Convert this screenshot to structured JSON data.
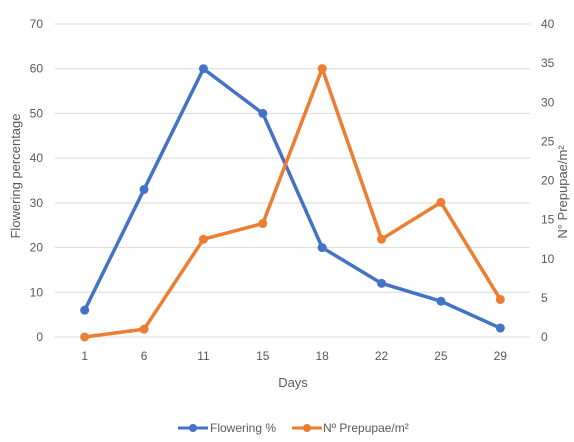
{
  "chart_data": {
    "type": "line",
    "title": "",
    "xlabel": "Days",
    "ylabel": "Flowering percentage",
    "y2label": "N° Prepupae/m²",
    "categories": [
      "1",
      "6",
      "11",
      "15",
      "18",
      "22",
      "25",
      "29"
    ],
    "ylim": [
      0,
      70
    ],
    "y2lim": [
      0,
      40
    ],
    "yticks": [
      "0",
      "10",
      "20",
      "30",
      "40",
      "50",
      "60",
      "70"
    ],
    "y2ticks": [
      "0",
      "5",
      "10",
      "15",
      "20",
      "25",
      "30",
      "35",
      "40"
    ],
    "grid": true,
    "legend_position": "bottom",
    "series": [
      {
        "name": "Flowering %",
        "axis": "left",
        "color": "#4472C4",
        "values": [
          6,
          33,
          60,
          50,
          20,
          12,
          8,
          2
        ]
      },
      {
        "name": "Nº Prepupae/m²",
        "axis": "right",
        "color": "#ED7D31",
        "values": [
          0,
          1,
          12.5,
          14.5,
          34.3,
          12.5,
          17.2,
          4.8
        ]
      }
    ]
  }
}
